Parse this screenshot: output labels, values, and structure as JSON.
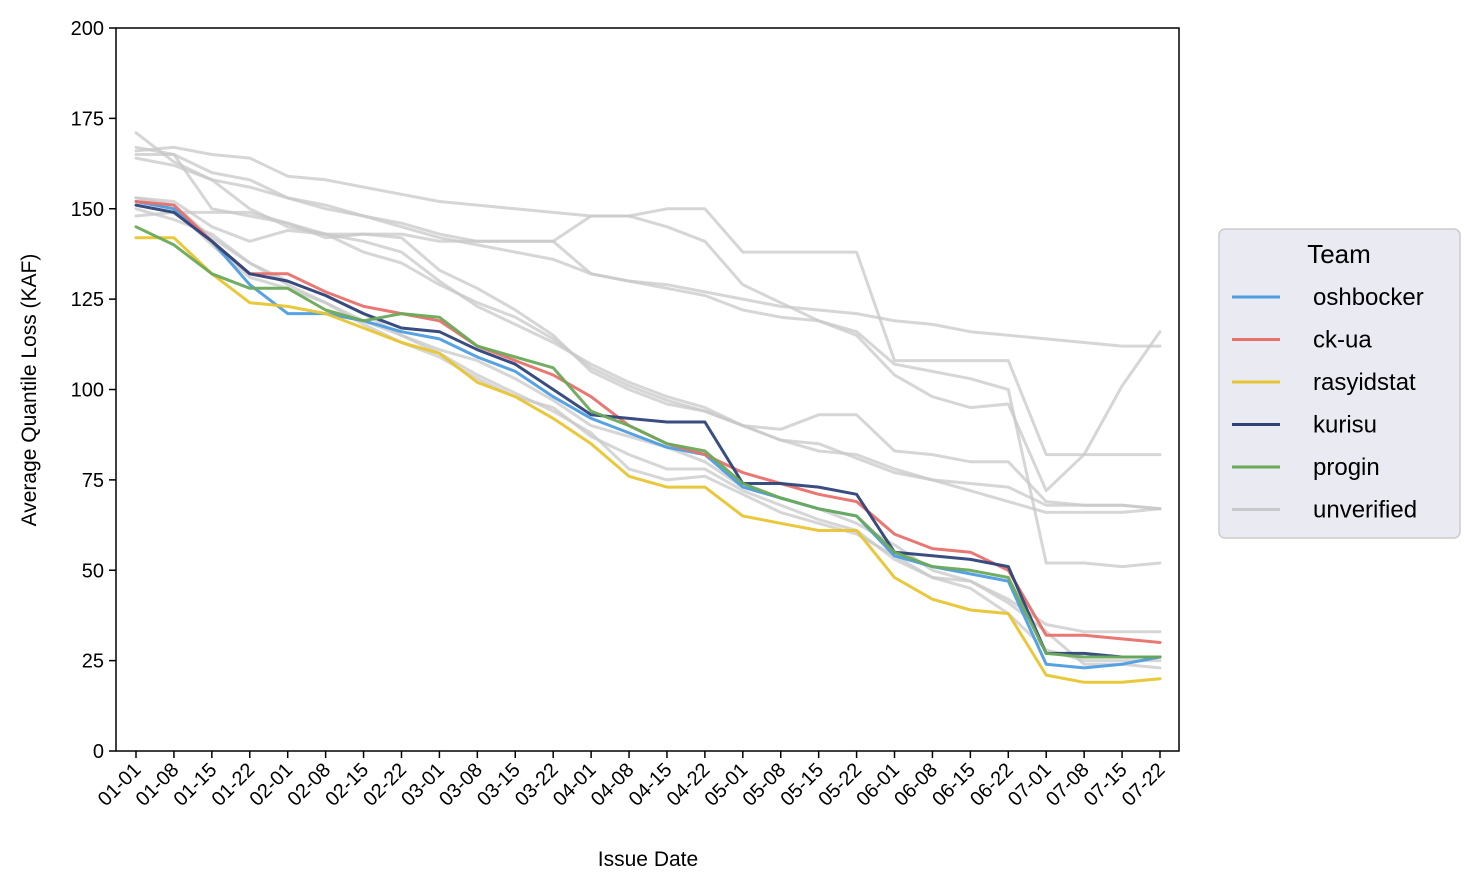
{
  "chart_data": {
    "type": "line",
    "xlabel": "Issue Date",
    "ylabel": "Average Quantile Loss (KAF)",
    "ylim": [
      0,
      200
    ],
    "yticks": [
      0,
      25,
      50,
      75,
      100,
      125,
      150,
      175,
      200
    ],
    "categories": [
      "01-01",
      "01-08",
      "01-15",
      "01-22",
      "02-01",
      "02-08",
      "02-15",
      "02-22",
      "03-01",
      "03-08",
      "03-15",
      "03-22",
      "04-01",
      "04-08",
      "04-15",
      "04-22",
      "05-01",
      "05-08",
      "05-15",
      "05-22",
      "06-01",
      "06-08",
      "06-15",
      "06-22",
      "07-01",
      "07-08",
      "07-15",
      "07-22"
    ],
    "legend": {
      "title": "Team",
      "placement": "outside-right"
    },
    "grid": false,
    "series": [
      {
        "name": "oshbocker",
        "color": "#4e9de0",
        "values": [
          152,
          150,
          141,
          129,
          121,
          121,
          119,
          116,
          114,
          109,
          105,
          98,
          92,
          88,
          84,
          82,
          73,
          70,
          67,
          65,
          54,
          51,
          49,
          47,
          24,
          23,
          24,
          26
        ]
      },
      {
        "name": "ck-ua",
        "color": "#e8706a",
        "values": [
          152,
          151,
          141,
          132,
          132,
          127,
          123,
          121,
          119,
          112,
          108,
          104,
          98,
          90,
          85,
          82,
          77,
          74,
          71,
          69,
          60,
          56,
          55,
          50,
          32,
          32,
          31,
          30
        ]
      },
      {
        "name": "rasyidstat",
        "color": "#e8c530",
        "values": [
          142,
          142,
          132,
          124,
          123,
          121,
          117,
          113,
          110,
          102,
          98,
          92,
          85,
          76,
          73,
          73,
          65,
          63,
          61,
          61,
          48,
          42,
          39,
          38,
          21,
          19,
          19,
          20
        ]
      },
      {
        "name": "kurisu",
        "color": "#2f4379",
        "values": [
          151,
          149,
          141,
          132,
          130,
          126,
          121,
          117,
          116,
          111,
          107,
          100,
          93,
          92,
          91,
          91,
          74,
          74,
          73,
          71,
          55,
          54,
          53,
          51,
          27,
          27,
          26,
          26
        ]
      },
      {
        "name": "progin",
        "color": "#6aaa5a",
        "values": [
          145,
          140,
          132,
          128,
          128,
          122,
          119,
          121,
          120,
          112,
          109,
          106,
          94,
          90,
          85,
          83,
          74,
          70,
          67,
          65,
          55,
          51,
          50,
          48,
          27,
          26,
          26,
          26
        ]
      },
      {
        "name": "unverified",
        "color": "#c8c8c8",
        "values": [
          171,
          163,
          158,
          156,
          153,
          150,
          148,
          146,
          143,
          141,
          141,
          141,
          148,
          148,
          150,
          150,
          138,
          138,
          138,
          138,
          108,
          108,
          108,
          108,
          82,
          82,
          82,
          82
        ]
      },
      {
        "name": "",
        "color": "#c8c8c8",
        "values": [
          167,
          165,
          160,
          158,
          153,
          151,
          148,
          145,
          142,
          140,
          138,
          136,
          132,
          130,
          129,
          127,
          125,
          123,
          122,
          121,
          119,
          118,
          116,
          115,
          114,
          113,
          112,
          112
        ]
      },
      {
        "name": "",
        "color": "#c8c8c8",
        "values": [
          166,
          167,
          165,
          164,
          159,
          158,
          156,
          154,
          152,
          151,
          150,
          149,
          148,
          148,
          145,
          141,
          129,
          124,
          119,
          115,
          104,
          98,
          95,
          96,
          72,
          82,
          101,
          116
        ]
      },
      {
        "name": "",
        "color": "#c8c8c8",
        "values": [
          165,
          165,
          150,
          148,
          146,
          143,
          138,
          135,
          129,
          124,
          120,
          114,
          106,
          101,
          97,
          94,
          90,
          89,
          93,
          93,
          83,
          82,
          80,
          80,
          69,
          68,
          68,
          67
        ]
      },
      {
        "name": "",
        "color": "#c8c8c8",
        "values": [
          164,
          162,
          158,
          150,
          145,
          143,
          141,
          138,
          130,
          123,
          118,
          113,
          107,
          102,
          98,
          95,
          90,
          86,
          85,
          81,
          77,
          75,
          72,
          69,
          66,
          66,
          66,
          67
        ]
      },
      {
        "name": "",
        "color": "#c8c8c8",
        "values": [
          148,
          149,
          149,
          149,
          146,
          142,
          143,
          143,
          141,
          141,
          141,
          141,
          132,
          130,
          128,
          126,
          122,
          120,
          119,
          116,
          107,
          105,
          103,
          100,
          52,
          52,
          51,
          52
        ]
      },
      {
        "name": "",
        "color": "#c8c8c8",
        "values": [
          153,
          152,
          145,
          141,
          144,
          143,
          143,
          142,
          133,
          128,
          122,
          115,
          105,
          100,
          96,
          94,
          90,
          86,
          83,
          82,
          78,
          75,
          74,
          73,
          68,
          68,
          68,
          67
        ]
      },
      {
        "name": "",
        "color": "#c8c8c8",
        "values": [
          153,
          151,
          142,
          135,
          129,
          124,
          119,
          115,
          110,
          104,
          99,
          94,
          88,
          78,
          75,
          76,
          71,
          66,
          63,
          60,
          54,
          48,
          47,
          42,
          35,
          33,
          33,
          33
        ]
      },
      {
        "name": "",
        "color": "#c8c8c8",
        "values": [
          152,
          150,
          140,
          131,
          128,
          124,
          118,
          113,
          109,
          103,
          98,
          95,
          87,
          82,
          78,
          78,
          72,
          68,
          64,
          61,
          53,
          48,
          45,
          38,
          28,
          25,
          25,
          25
        ]
      },
      {
        "name": "",
        "color": "#c8c8c8",
        "values": [
          150,
          147,
          143,
          135,
          130,
          126,
          121,
          115,
          111,
          108,
          103,
          97,
          90,
          87,
          84,
          80,
          73,
          70,
          67,
          63,
          57,
          50,
          47,
          41,
          33,
          24,
          24,
          23
        ]
      }
    ]
  }
}
